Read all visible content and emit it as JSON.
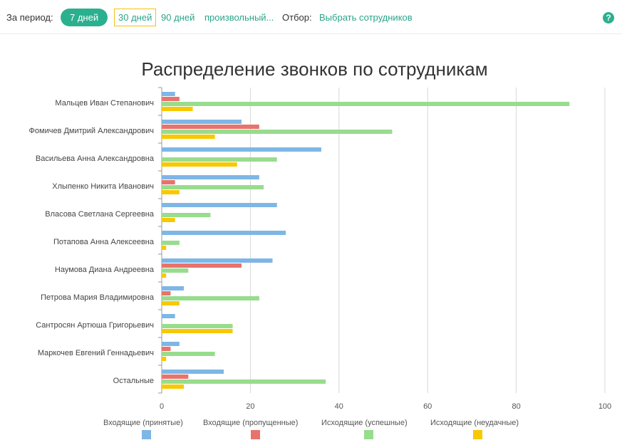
{
  "toolbar": {
    "period_label": "За период:",
    "period_7": "7 дней",
    "period_30": "30 дней",
    "period_90": "90 дней",
    "period_custom": "произвольный...",
    "filter_label": "Отбор:",
    "filter_link": "Выбрать сотрудников",
    "help_glyph": "?"
  },
  "colors": {
    "accent": "#2bb08f",
    "incoming_accepted": "#7eb6e6",
    "incoming_missed": "#e8736c",
    "outgoing_success": "#98dc8e",
    "outgoing_failed": "#f8c800",
    "grid": "#d8d8d8"
  },
  "chart_data": {
    "type": "bar",
    "orientation": "horizontal",
    "title": "Распределение звонков по сотрудникам",
    "categories": [
      "Мальцев Иван Степанович",
      "Фомичев Дмитрий Александрович",
      "Васильева Анна Александровна",
      "Хлыпенко Никита Иванович",
      "Власова Светлана Сергеевна",
      "Потапова Анна Алексеевна",
      "Наумова Диана Андреевна",
      "Петрова Мария Владимировна",
      "Сантросян Артюша Григорьевич",
      "Маркочев Евгений Геннадьевич",
      "Остальные"
    ],
    "series": [
      {
        "name": "Входящие (принятые)",
        "values": [
          3,
          18,
          36,
          22,
          26,
          28,
          25,
          5,
          3,
          4,
          14
        ]
      },
      {
        "name": "Входящие (пропущенные)",
        "values": [
          4,
          22,
          0,
          3,
          0,
          0,
          18,
          2,
          0,
          2,
          6
        ]
      },
      {
        "name": "Исходящие (успешные)",
        "values": [
          92,
          52,
          26,
          23,
          11,
          4,
          6,
          22,
          16,
          12,
          37
        ]
      },
      {
        "name": "Исходящие (неудачные)",
        "values": [
          7,
          12,
          17,
          4,
          3,
          1,
          1,
          4,
          16,
          1,
          5
        ]
      }
    ],
    "xlim": [
      0,
      100
    ],
    "ticks": [
      "0",
      "20",
      "40",
      "60",
      "80",
      "100"
    ],
    "grid": true,
    "legend": "bottom"
  }
}
